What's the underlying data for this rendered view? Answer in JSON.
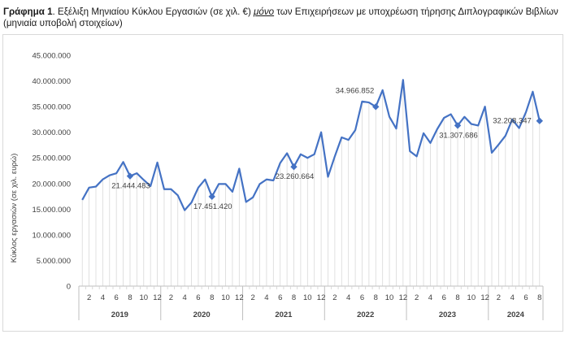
{
  "caption": {
    "lead": "Γράφημα 1",
    "text_1": ". Εξέλιξη Μηνιαίου Κύκλου Εργασιών (σε χιλ. €) ",
    "emph": "μόνο",
    "text_2": " των Επιχειρήσεων με υποχρέωση τήρησης Διπλογραφικών Βιβλίων (μηνιαία υποβολή στοιχείων)"
  },
  "chart_data": {
    "type": "line",
    "ylabel": "Κύκλος εργασιών (σε χιλ. ευρώ)",
    "ylim": [
      0,
      45000000
    ],
    "yticks": [
      "0",
      "5.000.000",
      "10.000.000",
      "15.000.000",
      "20.000.000",
      "25.000.000",
      "30.000.000",
      "35.000.000",
      "40.000.000",
      "45.000.000"
    ],
    "x_month_ticks": [
      "2",
      "4",
      "6",
      "8",
      "10",
      "12"
    ],
    "x_month_ticks_last_year": [
      "2",
      "4",
      "6",
      "8"
    ],
    "years": [
      "2019",
      "2020",
      "2021",
      "2022",
      "2023",
      "2024"
    ],
    "grid": "vertical drop lines per month",
    "line_color": "#4472c4",
    "values": [
      16800000,
      19200000,
      19400000,
      20800000,
      21600000,
      22000000,
      24200000,
      21444483,
      22000000,
      20700000,
      19500000,
      24100000,
      18900000,
      18900000,
      17700000,
      14800000,
      16300000,
      19200000,
      20800000,
      17451420,
      19900000,
      19900000,
      18400000,
      22900000,
      16400000,
      17300000,
      19900000,
      20800000,
      20600000,
      24000000,
      25900000,
      23260664,
      25700000,
      25000000,
      25700000,
      30000000,
      21300000,
      25300000,
      29000000,
      28500000,
      30400000,
      36000000,
      35800000,
      34966852,
      38200000,
      33000000,
      30700000,
      40200000,
      26300000,
      25300000,
      29800000,
      27900000,
      30600000,
      32800000,
      33500000,
      31307686,
      33000000,
      31600000,
      31300000,
      35000000,
      26000000,
      27600000,
      29300000,
      32500000,
      30800000,
      33900000,
      37900000,
      32208347
    ],
    "annotations": [
      {
        "index": 7,
        "label": "21.444.483"
      },
      {
        "index": 19,
        "label": "17.451.420"
      },
      {
        "index": 31,
        "label": "23.260.664"
      },
      {
        "index": 43,
        "label": "34.966.852"
      },
      {
        "index": 55,
        "label": "31.307.686"
      },
      {
        "index": 67,
        "label": "32.208.347"
      }
    ]
  }
}
